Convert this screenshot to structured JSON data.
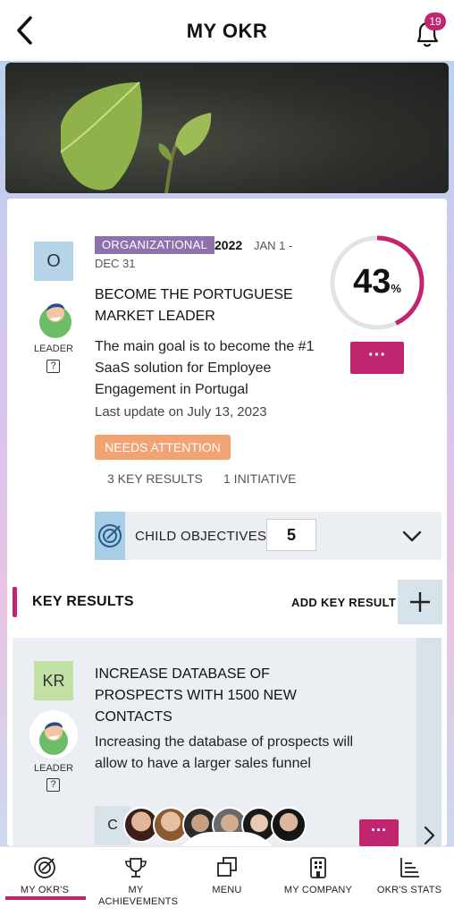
{
  "header": {
    "title": "MY OKR",
    "notification_count": "19",
    "back_icon": "chevron-left-icon",
    "bell_icon": "bell-icon"
  },
  "objective": {
    "initial": "O",
    "leader_label": "LEADER",
    "help_glyph": "?",
    "type_tag": "ORGANIZATIONAL",
    "year": "2022",
    "dates_line1": "JAN 1 -",
    "dates_line2": "DEC 31",
    "title": "BECOME THE PORTUGUESE MARKET LEADER",
    "description": "The main goal is to become the #1 SaaS solution for Employee Engagement in Portugal",
    "last_update": "Last update on July 13, 2023",
    "status": "NEEDS ATTENTION",
    "key_results_count": "3 KEY RESULTS",
    "initiatives_count": "1 INITIATIVE",
    "progress_number": "43",
    "progress_symbol": "%",
    "progress": 0.43,
    "more_label": "···",
    "child_objectives_label": "CHILD OBJECTIVES",
    "child_objectives_count": "5"
  },
  "key_results_section": {
    "heading": "KEY RESULTS",
    "add_label": "ADD KEY RESULT",
    "plus_glyph": "+"
  },
  "key_result": {
    "initial": "KR",
    "leader_label": "LEADER",
    "help_glyph": "?",
    "title": "INCREASE DATABASE OF PROSPECTS WITH 1500 NEW CONTACTS",
    "description": "Increasing the database of prospects will allow to have a larger sales funnel",
    "collaborators_label": "C",
    "more_label": "···"
  },
  "nav": {
    "items": [
      {
        "label": "MY OKR'S",
        "icon": "target-icon"
      },
      {
        "label": "MY ACHIEVEMENTS",
        "icon": "trophy-icon"
      },
      {
        "label": "MENU",
        "icon": "squares-icon"
      },
      {
        "label": "MY COMPANY",
        "icon": "building-icon"
      },
      {
        "label": "OKR'S STATS",
        "icon": "stats-icon"
      }
    ]
  },
  "colors": {
    "accent": "#c2256f",
    "tag_purple": "#8d72ac",
    "status_orange": "#f2a373",
    "objective_box": "#b5d4e8",
    "kr_box": "#c1e0a4"
  }
}
